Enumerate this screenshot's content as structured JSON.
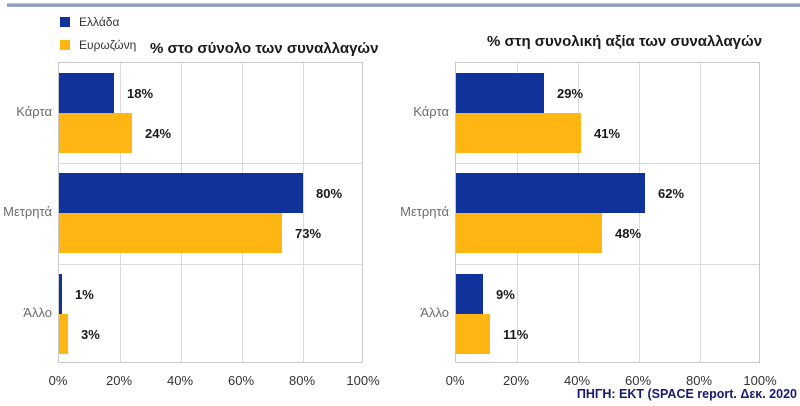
{
  "figure": {
    "source_note": "ΠΗΓΗ: ΕΚΤ (SPACE report. Δεκ. 2020",
    "top_rule_color": "#7E95BB"
  },
  "legend": {
    "items": [
      {
        "label": "Ελλάδα",
        "color": "#10339B"
      },
      {
        "label": "Ευρωζώνη",
        "color": "#FFB612"
      }
    ]
  },
  "chart_data": [
    {
      "type": "bar",
      "orientation": "horizontal",
      "title": "% στο σύνολο των συναλλαγών",
      "categories": [
        "Κάρτα",
        "Μετρητά",
        "Άλλο"
      ],
      "series": [
        {
          "name": "Ελλάδα",
          "color": "#10339B",
          "values": [
            18,
            80,
            1
          ]
        },
        {
          "name": "Ευρωζώνη",
          "color": "#FFB612",
          "values": [
            24,
            73,
            3
          ]
        }
      ],
      "xlim": [
        0,
        100
      ],
      "x_tick_labels": [
        "0%",
        "20%",
        "40%",
        "60%",
        "80%",
        "100%"
      ],
      "value_label_suffix": "%",
      "grid": true,
      "legend_position": "top-left"
    },
    {
      "type": "bar",
      "orientation": "horizontal",
      "title": "% στη συνολική αξία των συναλλαγών",
      "categories": [
        "Κάρτα",
        "Μετρητά",
        "Άλλο"
      ],
      "series": [
        {
          "name": "Ελλάδα",
          "color": "#10339B",
          "values": [
            29,
            62,
            9
          ]
        },
        {
          "name": "Ευρωζώνη",
          "color": "#FFB612",
          "values": [
            41,
            48,
            11
          ]
        }
      ],
      "xlim": [
        0,
        100
      ],
      "x_tick_labels": [
        "0%",
        "20%",
        "40%",
        "60%",
        "80%",
        "100%"
      ],
      "value_label_suffix": "%",
      "grid": true,
      "legend_position": "none"
    }
  ]
}
